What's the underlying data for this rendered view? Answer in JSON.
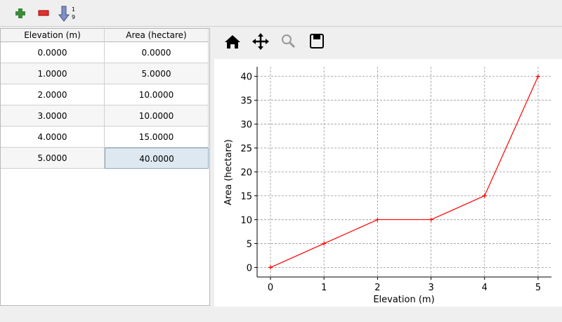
{
  "table": {
    "headers": [
      "Elevation (m)",
      "Area (hectare)"
    ],
    "rows": [
      [
        "0.0000",
        "0.0000"
      ],
      [
        "1.0000",
        "5.0000"
      ],
      [
        "2.0000",
        "10.0000"
      ],
      [
        "3.0000",
        "10.0000"
      ],
      [
        "4.0000",
        "15.0000"
      ],
      [
        "5.0000",
        "40.0000"
      ]
    ]
  },
  "chart_data": {
    "type": "line",
    "xlabel": "Elevation (m)",
    "ylabel": "Area (hectare)",
    "x": [
      0,
      1,
      2,
      3,
      4,
      5
    ],
    "values": [
      0,
      5,
      10,
      10,
      15,
      40
    ],
    "color": "#ff0000",
    "xlim": [
      -0.25,
      5.25
    ],
    "ylim": [
      -2,
      42
    ],
    "xticks": [
      0,
      1,
      2,
      3,
      4,
      5
    ],
    "yticks": [
      0,
      5,
      10,
      15,
      20,
      25,
      30,
      35,
      40
    ],
    "grid": true
  }
}
